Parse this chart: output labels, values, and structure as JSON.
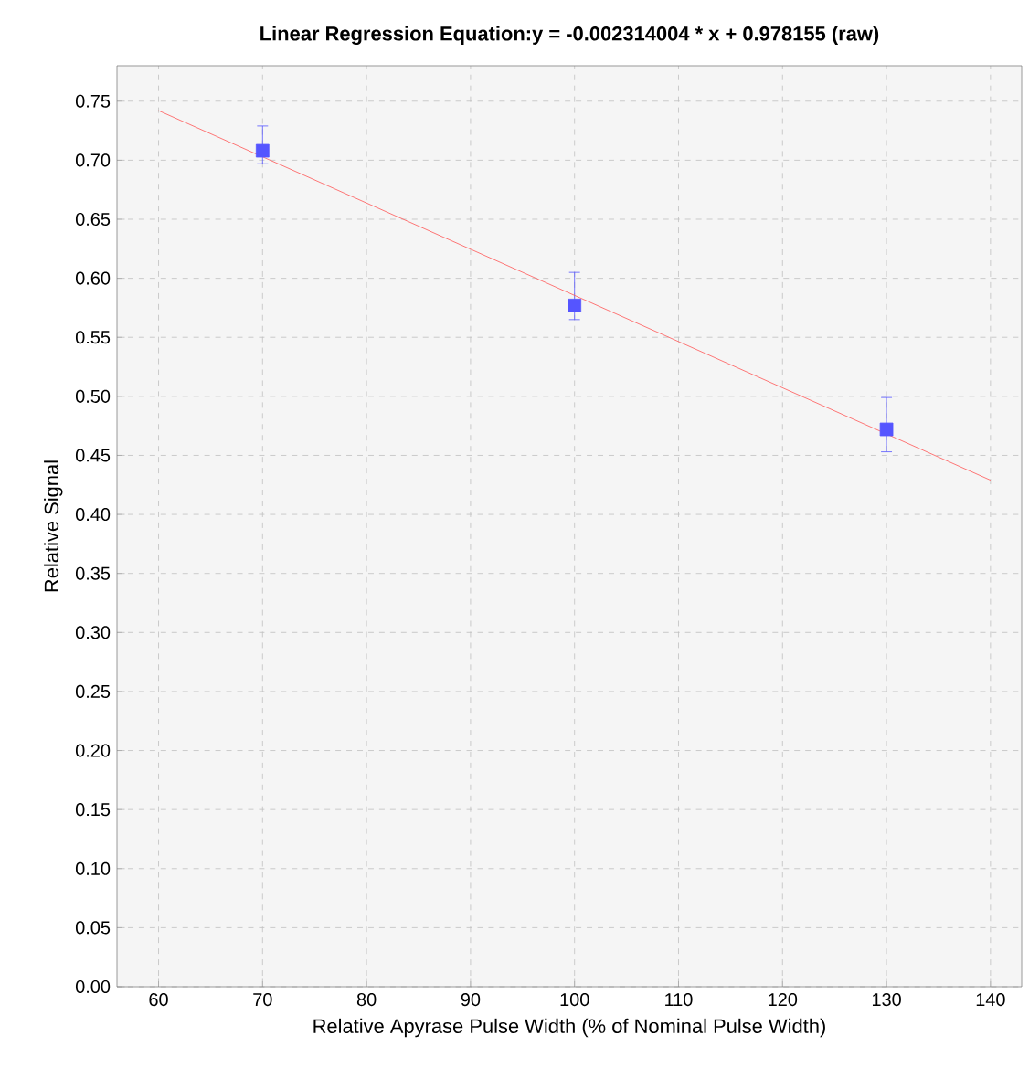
{
  "chart_data": {
    "type": "scatter",
    "title": "Linear Regression Equation:y = -0.002314004 * x + 0.978155 (raw)",
    "xlabel": "Relative Apyrase Pulse Width (% of Nominal Pulse Width)",
    "ylabel": "Relative Signal",
    "xlim": [
      56,
      143
    ],
    "ylim": [
      0,
      0.78
    ],
    "xticks": [
      60,
      70,
      80,
      90,
      100,
      110,
      120,
      130,
      140
    ],
    "yticks": [
      {
        "value": 0,
        "label": "0.00"
      },
      0.05,
      {
        "value": 0.1,
        "label": "0.10"
      },
      0.15,
      {
        "value": 0.2,
        "label": "0.20"
      },
      0.25,
      {
        "value": 0.3,
        "label": "0.30"
      },
      0.35,
      {
        "value": 0.4,
        "label": "0.40"
      },
      0.45,
      {
        "value": 0.5,
        "label": "0.50"
      },
      0.55,
      {
        "value": 0.6,
        "label": "0.60"
      },
      0.65,
      {
        "value": 0.7,
        "label": "0.70"
      },
      0.75
    ],
    "grid": true,
    "series": [
      {
        "marker": "square",
        "color": "#5555ff",
        "x": [
          70,
          100,
          130
        ],
        "values": [
          0.708,
          0.577,
          0.472
        ],
        "errors": [
          [
            0.697,
            0.729
          ],
          [
            0.565,
            0.605
          ],
          [
            0.453,
            0.499
          ]
        ]
      },
      {
        "type": "line",
        "marker": "none",
        "line_style": "solid",
        "color": "#ff5555",
        "x": [
          60,
          140
        ],
        "values": [
          0.742,
          0.429
        ]
      }
    ]
  }
}
